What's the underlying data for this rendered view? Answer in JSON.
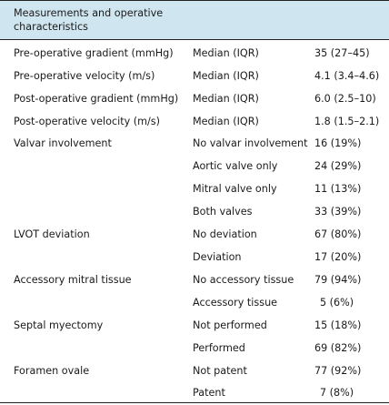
{
  "header": {
    "title": "Measurements and operative characteristics"
  },
  "rows": [
    {
      "measure": "Pre-operative gradient (mmHg)",
      "stat": "Median (IQR)",
      "value": "35 (27–45)"
    },
    {
      "measure": "Pre-operative velocity (m/s)",
      "stat": "Median (IQR)",
      "value": "4.1 (3.4–4.6)"
    },
    {
      "measure": "Post-operative gradient (mmHg)",
      "stat": "Median (IQR)",
      "value": "6.0 (2.5–10)"
    },
    {
      "measure": "Post-operative velocity (m/s)",
      "stat": "Median (IQR)",
      "value": "1.8 (1.5–2.1)"
    },
    {
      "measure": "Valvar involvement",
      "stat": "No valvar involvement",
      "value": "16 (19%)"
    },
    {
      "measure": "",
      "stat": "Aortic valve only",
      "value": "24 (29%)"
    },
    {
      "measure": "",
      "stat": "Mitral valve only",
      "value": "11 (13%)"
    },
    {
      "measure": "",
      "stat": "Both valves",
      "value": "33 (39%)"
    },
    {
      "measure": "LVOT deviation",
      "stat": "No deviation",
      "value": "67 (80%)"
    },
    {
      "measure": "",
      "stat": "Deviation",
      "value": "17 (20%)"
    },
    {
      "measure": "Accessory mitral tissue",
      "stat": "No accessory tissue",
      "value": "79 (94%)"
    },
    {
      "measure": "",
      "stat": "Accessory tissue",
      "value": "5 (6%)"
    },
    {
      "measure": "Septal myectomy",
      "stat": "Not performed",
      "value": "15 (18%)"
    },
    {
      "measure": "",
      "stat": "Performed",
      "value": "69 (82%)"
    },
    {
      "measure": "Foramen ovale",
      "stat": "Not patent",
      "value": "77 (92%)"
    },
    {
      "measure": "",
      "stat": "Patent",
      "value": "7 (8%)"
    }
  ]
}
